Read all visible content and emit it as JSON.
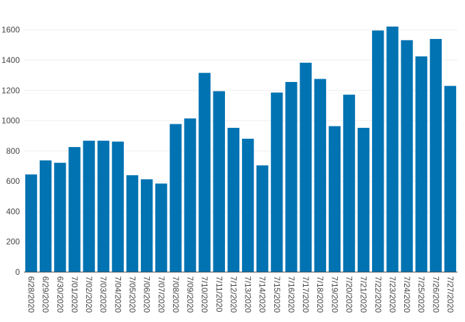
{
  "chart_data": {
    "type": "bar",
    "title": "",
    "xlabel": "",
    "ylabel": "",
    "categories": [
      "6/28/2020",
      "6/29/2020",
      "6/30/2020",
      "7/01/2020",
      "7/02/2020",
      "7/03/2020",
      "7/04/2020",
      "7/05/2020",
      "7/06/2020",
      "7/07/2020",
      "7/08/2020",
      "7/09/2020",
      "7/10/2020",
      "7/11/2020",
      "7/12/2020",
      "7/13/2020",
      "7/14/2020",
      "7/15/2020",
      "7/16/2020",
      "7/17/2020",
      "7/18/2020",
      "7/19/2020",
      "7/20/2020",
      "7/21/2020",
      "7/22/2020",
      "7/23/2020",
      "7/24/2020",
      "7/25/2020",
      "7/26/2020",
      "7/27/2020"
    ],
    "values": [
      645,
      738,
      722,
      826,
      868,
      868,
      862,
      640,
      613,
      585,
      978,
      1015,
      1316,
      1195,
      953,
      881,
      705,
      1186,
      1256,
      1383,
      1276,
      964,
      1172,
      953,
      1596,
      1622,
      1532,
      1425,
      1540,
      1230
    ],
    "ylim": [
      0,
      1600
    ],
    "yticks": [
      0,
      200,
      400,
      600,
      800,
      1000,
      1200,
      1400,
      1600
    ],
    "ymax": 1680,
    "grid": true,
    "legend": "none",
    "bar_color": "#0173b2",
    "grid_color": "#eeeeee",
    "axis_color": "#444444"
  }
}
